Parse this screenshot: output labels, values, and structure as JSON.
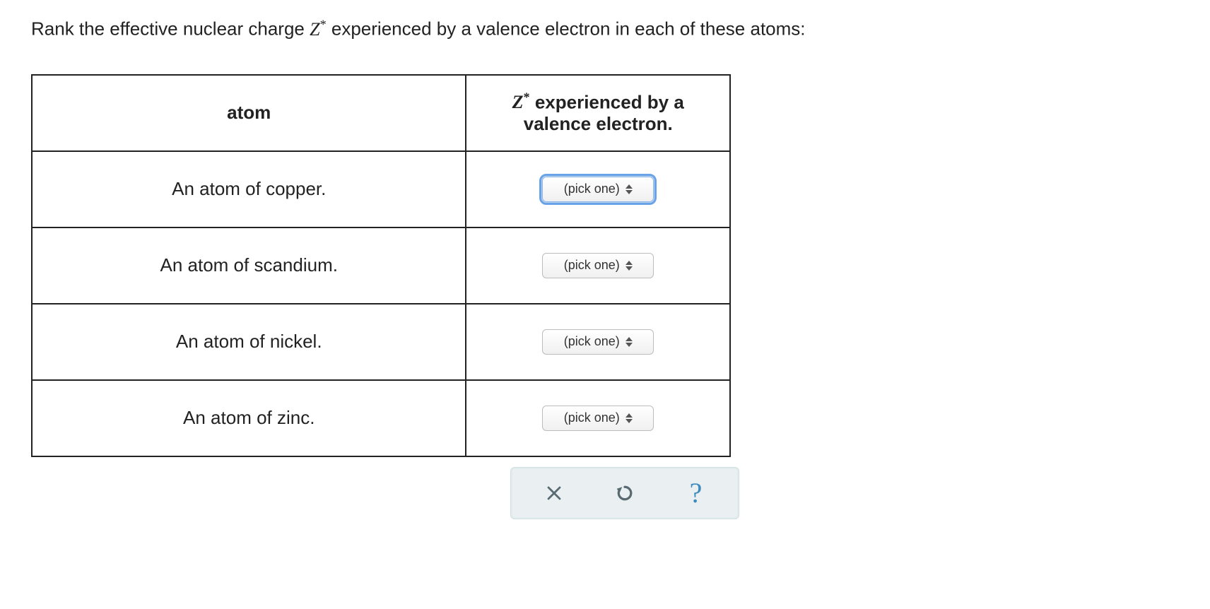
{
  "prompt": {
    "before": "Rank the effective nuclear charge ",
    "after": " experienced by a valence electron in each of these atoms:",
    "symbol_letter": "Z",
    "symbol_star": "*"
  },
  "table": {
    "header": {
      "atom": "atom",
      "z_before": "Z",
      "z_star": "*",
      "z_after": " experienced by a",
      "z_line2": "valence electron."
    },
    "rows": [
      {
        "atom_label": "An atom of copper.",
        "select_label": "(pick one)",
        "focused": true
      },
      {
        "atom_label": "An atom of scandium.",
        "select_label": "(pick one)",
        "focused": false
      },
      {
        "atom_label": "An atom of nickel.",
        "select_label": "(pick one)",
        "focused": false
      },
      {
        "atom_label": "An atom of zinc.",
        "select_label": "(pick one)",
        "focused": false
      }
    ]
  },
  "actions": {
    "clear_icon": "×",
    "reset_icon": "reset",
    "help_icon": "?"
  },
  "colors": {
    "text": "#222222",
    "border": "#222222",
    "focus_ring": "#6aa2e8",
    "action_bg": "#eaf0f1",
    "action_border": "#cfe0e3",
    "action_icon": "#5a6a72",
    "help_color": "#3f8bbd"
  }
}
